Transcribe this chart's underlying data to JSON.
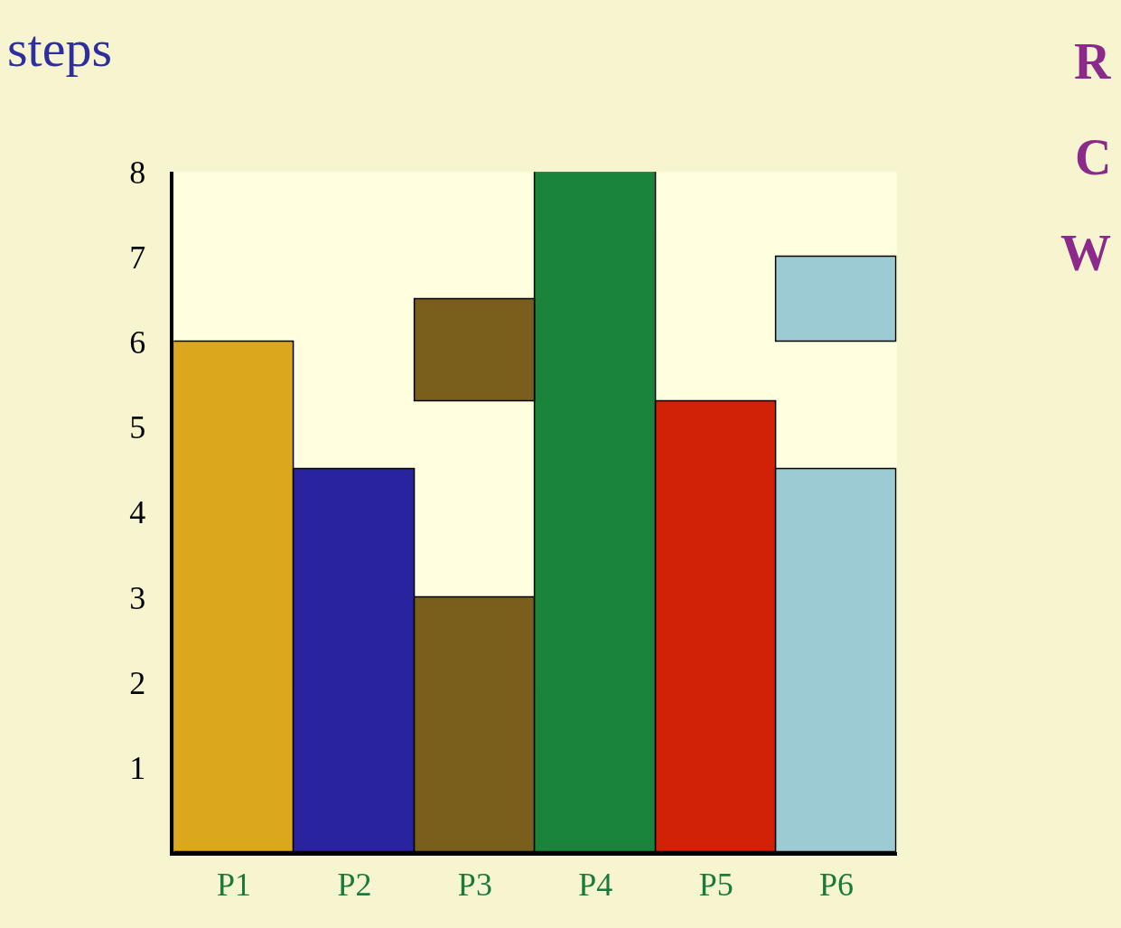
{
  "chart_data": {
    "type": "bar",
    "ylabel": "steps",
    "categories": [
      "P1",
      "P2",
      "P3",
      "P4",
      "P5",
      "P6"
    ],
    "series": [
      {
        "colors": [
          "#dba71d",
          "#2a23a0",
          "#7a5f1c",
          "#1a843c",
          "#d12106",
          "#9dcbd3"
        ],
        "values": [
          6,
          4.5,
          3,
          8,
          5.3,
          4.5
        ]
      },
      {
        "colors": [
          "#dba71d",
          "#2a23a0",
          "#7a5f1c",
          "#1a843c",
          "#d12106",
          "#9dcbd3"
        ],
        "values": [
          null,
          null,
          1.2,
          null,
          null,
          1
        ],
        "base": [
          null,
          null,
          5.3,
          null,
          null,
          6
        ]
      }
    ],
    "ylim": [
      0,
      8
    ],
    "yticks": [
      1,
      2,
      3,
      4,
      5,
      6,
      7,
      8
    ],
    "grid": false,
    "annotations": [
      "R",
      "C",
      "W"
    ]
  }
}
